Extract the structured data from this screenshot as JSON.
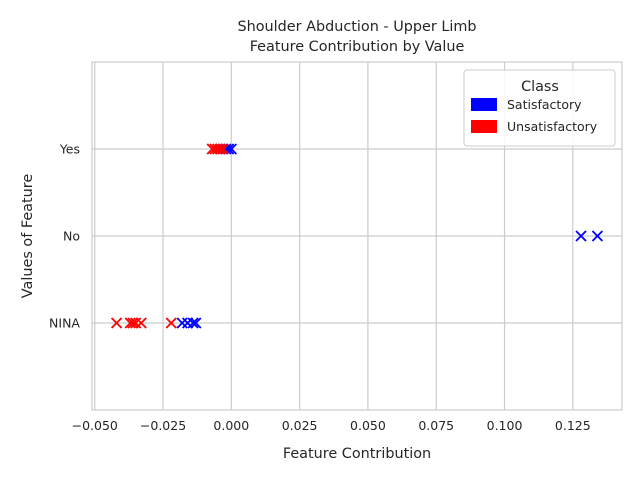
{
  "chart_data": {
    "type": "scatter",
    "title": "Shoulder Abduction - Upper Limb",
    "subtitle": "Feature Contribution by Value",
    "xlabel": "Feature Contribution",
    "ylabel": "Values of Feature",
    "xlim": [
      -0.051,
      0.143
    ],
    "ylim": [
      -1.0,
      3.0
    ],
    "xticks": [
      -0.05,
      -0.025,
      0.0,
      0.025,
      0.05,
      0.075,
      0.1,
      0.125
    ],
    "xtick_labels": [
      "−0.050",
      "−0.025",
      "0.000",
      "0.025",
      "0.050",
      "0.075",
      "0.100",
      "0.125"
    ],
    "categories": [
      "NINA",
      "No",
      "Yes"
    ],
    "marker": "x",
    "grid": true,
    "legend": {
      "title": "Class",
      "position": "top-right",
      "entries": [
        {
          "label": "Satisfactory",
          "color": "#0000ff"
        },
        {
          "label": "Unsatisfactory",
          "color": "#ff0000"
        }
      ]
    },
    "series": [
      {
        "name": "Satisfactory",
        "color": "#0000ff",
        "points": [
          {
            "x": -0.018,
            "y": "NINA"
          },
          {
            "x": -0.016,
            "y": "NINA"
          },
          {
            "x": -0.014,
            "y": "NINA"
          },
          {
            "x": -0.013,
            "y": "NINA"
          },
          {
            "x": 0.128,
            "y": "No"
          },
          {
            "x": 0.134,
            "y": "No"
          },
          {
            "x": -0.002,
            "y": "Yes"
          },
          {
            "x": -0.001,
            "y": "Yes"
          },
          {
            "x": 0.0,
            "y": "Yes"
          }
        ]
      },
      {
        "name": "Unsatisfactory",
        "color": "#ff0000",
        "points": [
          {
            "x": -0.042,
            "y": "NINA"
          },
          {
            "x": -0.037,
            "y": "NINA"
          },
          {
            "x": -0.036,
            "y": "NINA"
          },
          {
            "x": -0.035,
            "y": "NINA"
          },
          {
            "x": -0.033,
            "y": "NINA"
          },
          {
            "x": -0.022,
            "y": "NINA"
          },
          {
            "x": -0.007,
            "y": "Yes"
          },
          {
            "x": -0.006,
            "y": "Yes"
          },
          {
            "x": -0.005,
            "y": "Yes"
          },
          {
            "x": -0.004,
            "y": "Yes"
          },
          {
            "x": -0.003,
            "y": "Yes"
          }
        ]
      }
    ]
  }
}
